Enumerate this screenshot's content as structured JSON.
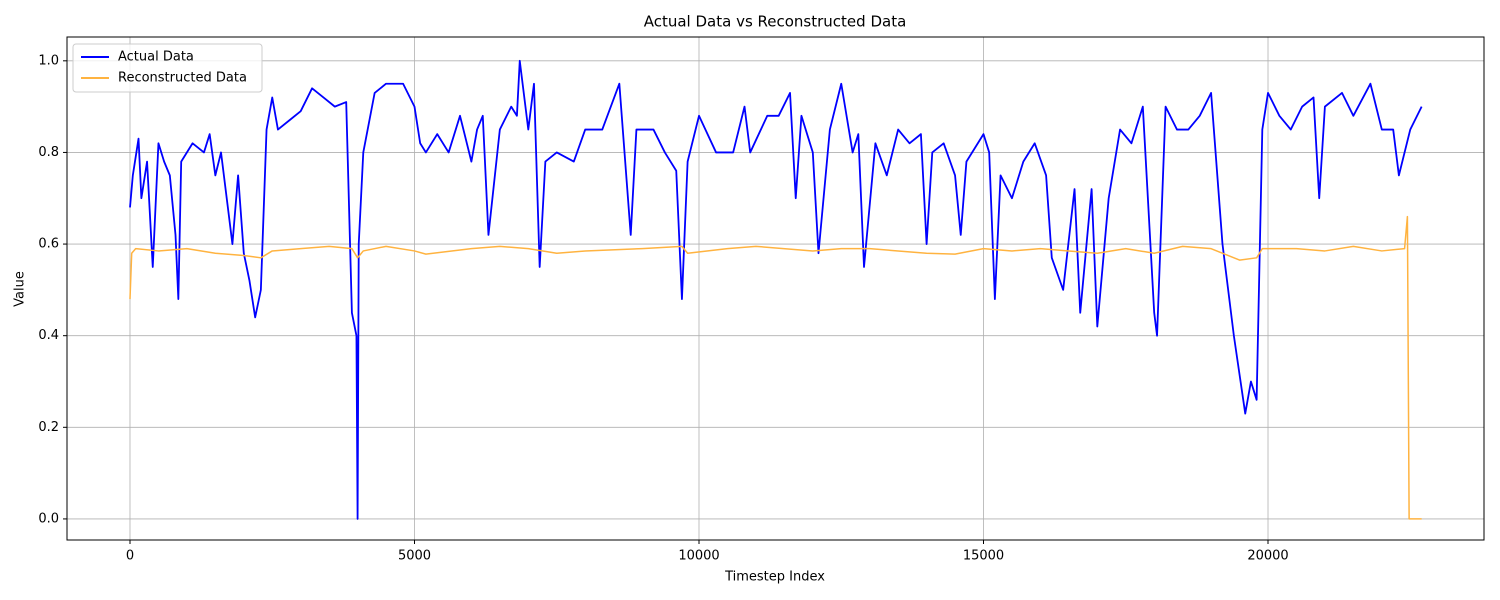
{
  "chart_data": {
    "type": "line",
    "title": "Actual Data vs Reconstructed Data",
    "xlabel": "Timestep Index",
    "ylabel": "Value",
    "xlim": [
      -1107,
      23796
    ],
    "ylim": [
      -0.046,
      1.052
    ],
    "xticks": [
      0,
      5000,
      10000,
      15000,
      20000
    ],
    "yticks": [
      {
        "value": 0,
        "label": "0.0"
      },
      0.2,
      0.4,
      0.6,
      0.8,
      {
        "value": 1,
        "label": "1.0"
      }
    ],
    "grid": true,
    "legend": "upper left",
    "series": [
      {
        "name": "Actual Data",
        "color": "#0000ff",
        "x": [
          0,
          50,
          150,
          200,
          300,
          400,
          500,
          600,
          700,
          800,
          850,
          900,
          1100,
          1300,
          1400,
          1500,
          1600,
          1700,
          1800,
          1900,
          2000,
          2100,
          2200,
          2300,
          2400,
          2500,
          2600,
          2800,
          3000,
          3200,
          3400,
          3600,
          3800,
          3900,
          3980,
          4000,
          4020,
          4100,
          4300,
          4500,
          4800,
          5000,
          5100,
          5200,
          5400,
          5600,
          5800,
          6000,
          6100,
          6200,
          6300,
          6500,
          6700,
          6800,
          6850,
          7000,
          7100,
          7200,
          7300,
          7500,
          7800,
          8000,
          8300,
          8600,
          8800,
          8900,
          9200,
          9400,
          9600,
          9700,
          9800,
          10000,
          10300,
          10600,
          10800,
          10900,
          11200,
          11400,
          11600,
          11700,
          11800,
          12000,
          12100,
          12300,
          12500,
          12700,
          12800,
          12900,
          13100,
          13300,
          13500,
          13700,
          13900,
          14000,
          14100,
          14300,
          14500,
          14600,
          14700,
          15000,
          15100,
          15200,
          15300,
          15500,
          15700,
          15900,
          16100,
          16200,
          16400,
          16600,
          16700,
          16900,
          17000,
          17200,
          17400,
          17600,
          17800,
          18000,
          18050,
          18200,
          18400,
          18600,
          18800,
          19000,
          19200,
          19400,
          19600,
          19700,
          19800,
          19900,
          20000,
          20200,
          20400,
          20600,
          20800,
          20900,
          21000,
          21300,
          21500,
          21800,
          22000,
          22200,
          22300,
          22500,
          22700
        ],
        "values": [
          0.68,
          0.75,
          0.83,
          0.7,
          0.78,
          0.55,
          0.82,
          0.78,
          0.75,
          0.62,
          0.48,
          0.78,
          0.82,
          0.8,
          0.84,
          0.75,
          0.8,
          0.7,
          0.6,
          0.75,
          0.58,
          0.52,
          0.44,
          0.5,
          0.85,
          0.92,
          0.85,
          0.87,
          0.89,
          0.94,
          0.92,
          0.9,
          0.91,
          0.45,
          0.4,
          0.0,
          0.6,
          0.8,
          0.93,
          0.95,
          0.95,
          0.9,
          0.82,
          0.8,
          0.84,
          0.8,
          0.88,
          0.78,
          0.85,
          0.88,
          0.62,
          0.85,
          0.9,
          0.88,
          1.0,
          0.85,
          0.95,
          0.55,
          0.78,
          0.8,
          0.78,
          0.85,
          0.85,
          0.95,
          0.62,
          0.85,
          0.85,
          0.8,
          0.76,
          0.48,
          0.78,
          0.88,
          0.8,
          0.8,
          0.9,
          0.8,
          0.88,
          0.88,
          0.93,
          0.7,
          0.88,
          0.8,
          0.58,
          0.85,
          0.95,
          0.8,
          0.84,
          0.55,
          0.82,
          0.75,
          0.85,
          0.82,
          0.84,
          0.6,
          0.8,
          0.82,
          0.75,
          0.62,
          0.78,
          0.84,
          0.8,
          0.48,
          0.75,
          0.7,
          0.78,
          0.82,
          0.75,
          0.57,
          0.5,
          0.72,
          0.45,
          0.72,
          0.42,
          0.7,
          0.85,
          0.82,
          0.9,
          0.45,
          0.4,
          0.9,
          0.85,
          0.85,
          0.88,
          0.93,
          0.6,
          0.4,
          0.23,
          0.3,
          0.26,
          0.85,
          0.93,
          0.88,
          0.85,
          0.9,
          0.92,
          0.7,
          0.9,
          0.93,
          0.88,
          0.95,
          0.85,
          0.85,
          0.75,
          0.85,
          0.9
        ]
      },
      {
        "name": "Reconstructed Data",
        "color": "#ffb340",
        "x": [
          0,
          30,
          100,
          500,
          1000,
          1500,
          2000,
          2300,
          2500,
          3000,
          3500,
          3900,
          4000,
          4100,
          4500,
          5000,
          5200,
          6000,
          6500,
          7000,
          7500,
          8000,
          9000,
          9700,
          9800,
          10500,
          11000,
          12000,
          12500,
          13000,
          13500,
          14000,
          14500,
          15000,
          15500,
          16000,
          16500,
          17000,
          17500,
          18000,
          18500,
          19000,
          19500,
          19800,
          19900,
          20500,
          21000,
          21500,
          22000,
          22400,
          22450,
          22480,
          22700
        ],
        "values": [
          0.48,
          0.58,
          0.59,
          0.585,
          0.59,
          0.58,
          0.575,
          0.57,
          0.585,
          0.59,
          0.595,
          0.59,
          0.57,
          0.585,
          0.595,
          0.585,
          0.578,
          0.59,
          0.595,
          0.59,
          0.58,
          0.585,
          0.59,
          0.595,
          0.58,
          0.59,
          0.595,
          0.585,
          0.59,
          0.59,
          0.585,
          0.58,
          0.578,
          0.59,
          0.585,
          0.59,
          0.585,
          0.58,
          0.59,
          0.58,
          0.595,
          0.59,
          0.565,
          0.57,
          0.59,
          0.59,
          0.585,
          0.595,
          0.585,
          0.59,
          0.66,
          0.0,
          0.0
        ]
      }
    ]
  }
}
